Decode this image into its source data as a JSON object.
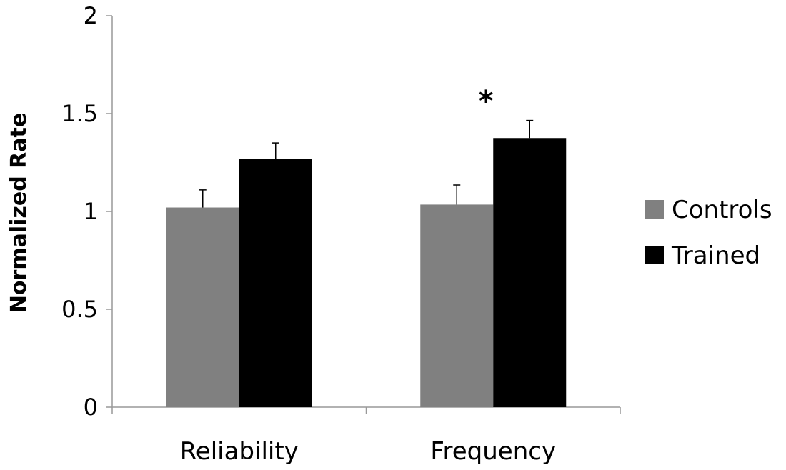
{
  "chart_data": {
    "type": "bar",
    "title": "",
    "xlabel": "",
    "ylabel": "Normalized Rate",
    "categories": [
      "Reliability",
      "Frequency"
    ],
    "ylim": [
      0,
      2
    ],
    "yticks": [
      "0",
      "0.5",
      "1",
      "1.5",
      "2"
    ],
    "series": [
      {
        "name": "Controls",
        "color": "#808080",
        "values": [
          1.02,
          1.035
        ],
        "errors": [
          0.09,
          0.1
        ]
      },
      {
        "name": "Trained",
        "color": "#000000",
        "values": [
          1.27,
          1.375
        ],
        "errors": [
          0.08,
          0.09
        ]
      }
    ],
    "annotations": [
      {
        "category": "Frequency",
        "text": "*"
      }
    ],
    "legend_position": "right"
  }
}
